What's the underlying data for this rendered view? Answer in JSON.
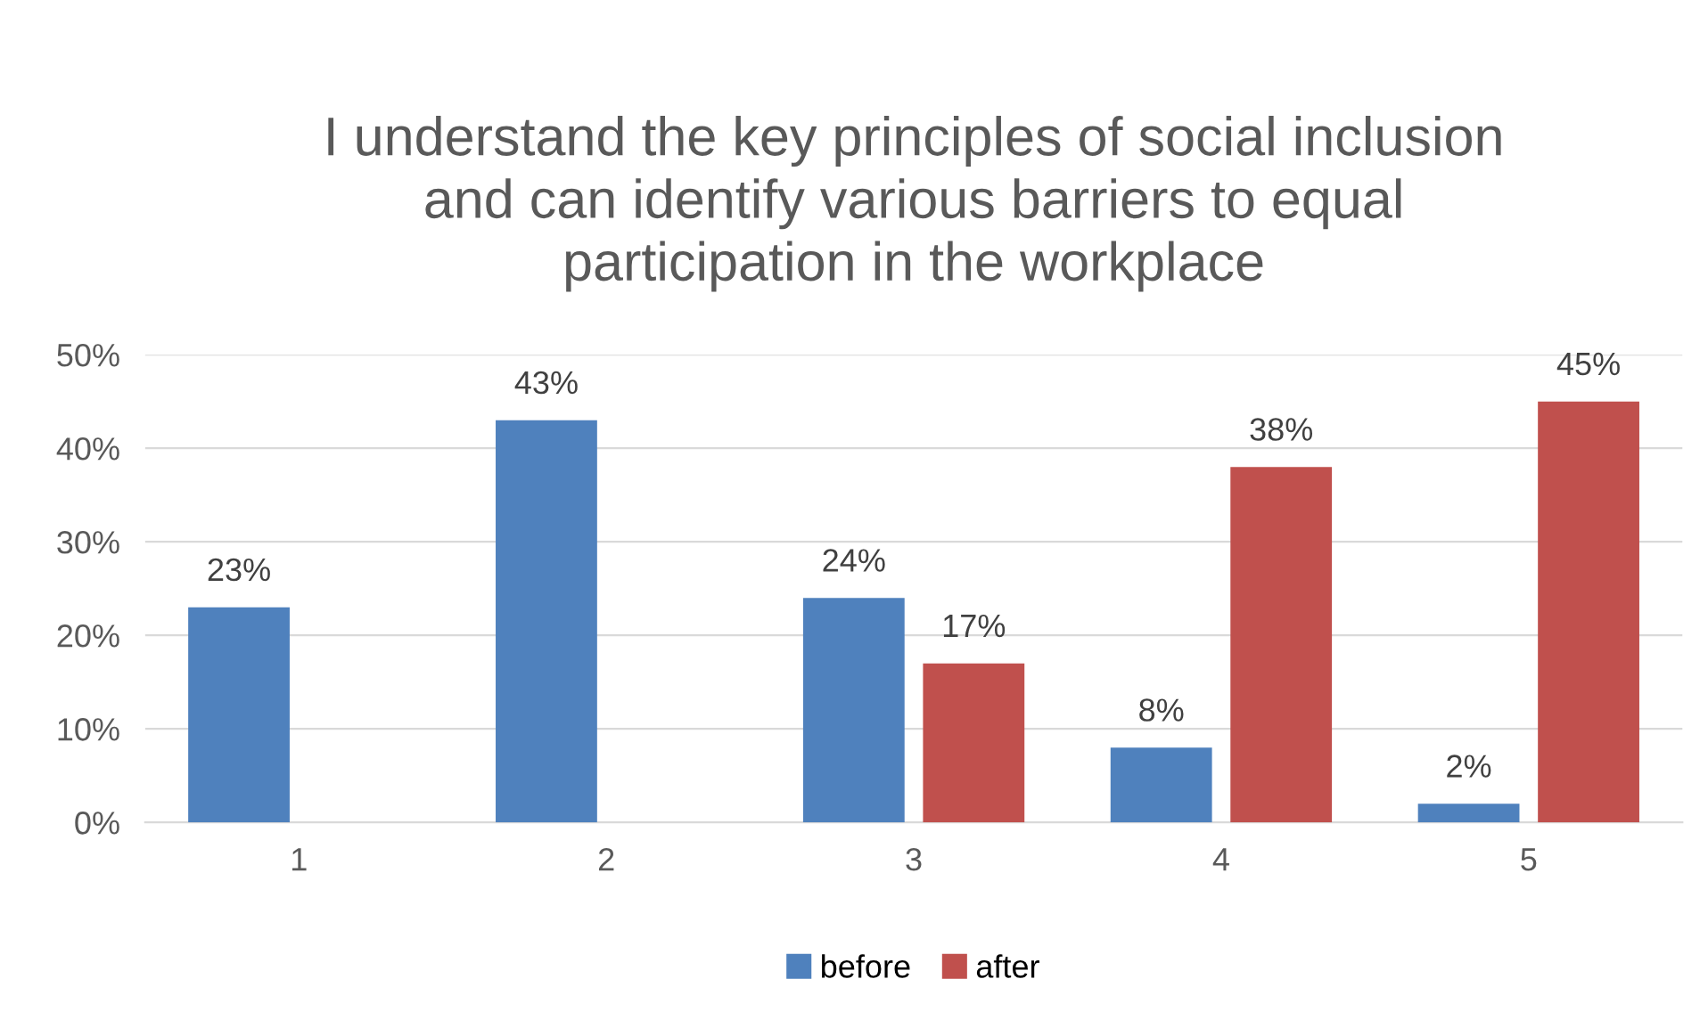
{
  "chart_data": {
    "type": "bar",
    "title": "I understand the key principles of social inclusion\nand can identify various barriers to equal\nparticipation in the workplace",
    "categories": [
      "1",
      "2",
      "3",
      "4",
      "5"
    ],
    "series": [
      {
        "name": "before",
        "color": "#4f81bd",
        "values": [
          23,
          43,
          24,
          8,
          2
        ],
        "value_labels": [
          "23%",
          "43%",
          "24%",
          "8%",
          "2%"
        ]
      },
      {
        "name": "after",
        "color": "#c0504d",
        "values": [
          null,
          null,
          17,
          38,
          45
        ],
        "value_labels": [
          null,
          null,
          "17%",
          "38%",
          "45%"
        ]
      }
    ],
    "ylim": [
      0,
      50
    ],
    "yticks": [
      {
        "value": 0,
        "label": "0%"
      },
      {
        "value": 10,
        "label": "10%"
      },
      {
        "value": 20,
        "label": "20%"
      },
      {
        "value": 30,
        "label": "30%"
      },
      {
        "value": 40,
        "label": "40%"
      },
      {
        "value": 50,
        "label": "50%"
      }
    ],
    "grid": "y",
    "legend": "bottom"
  }
}
